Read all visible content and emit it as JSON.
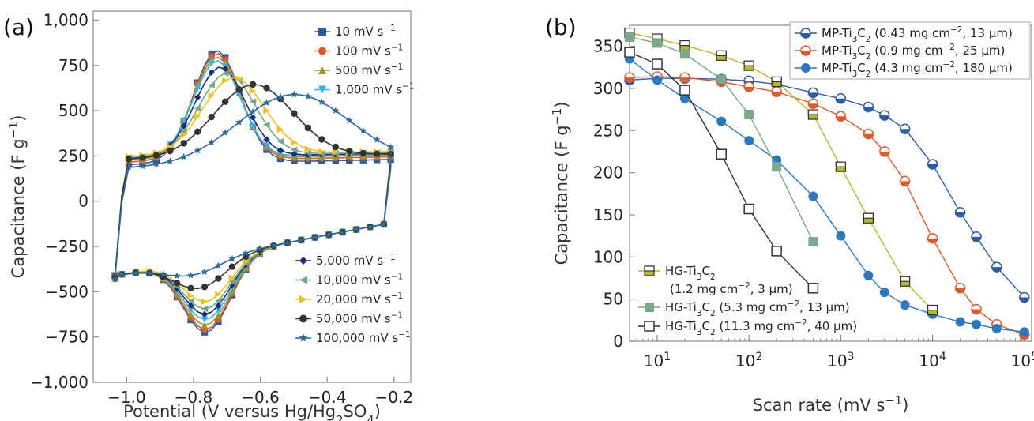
{
  "chart_data": [
    {
      "panel": "(a)",
      "type": "line",
      "title": "",
      "xlabel": "Potential (V versus Hg/Hg",
      "xlabel_sub": "2",
      "xlabel_mid": "SO",
      "xlabel_sub2": "4",
      "xlabel_end": ")",
      "ylabel": "Capacitance (F g",
      "ylabel_sup": "−1",
      "ylabel_end": ")",
      "xlim": [
        -1.1,
        -0.15
      ],
      "ylim": [
        -1000,
        1050
      ],
      "xticks": [
        -1.0,
        -0.8,
        -0.6,
        -0.4,
        -0.2
      ],
      "xtick_labels": [
        "−1.0",
        "−0.8",
        "−0.6",
        "−0.4",
        "−0.2"
      ],
      "yticks": [
        -1000,
        -750,
        -500,
        -250,
        0,
        250,
        500,
        750,
        1000
      ],
      "ytick_labels": [
        "−1,000",
        "−750",
        "−500",
        "−250",
        "0",
        "250",
        "500",
        "750",
        "1,000"
      ],
      "legend_top": "top-right",
      "legend_bottom": "bottom-right",
      "series": [
        {
          "name": "10 mV s",
          "color": "#2a5caa",
          "marker": "square",
          "peak_v": -0.73,
          "peak_c": 850,
          "trough_v": -0.76,
          "trough_c": -830,
          "start_c": 200,
          "low_c": -410
        },
        {
          "name": "100 mV s",
          "color": "#e0592a",
          "marker": "circle",
          "peak_v": -0.73,
          "peak_c": 835,
          "trough_v": -0.76,
          "trough_c": -815,
          "start_c": 215,
          "low_c": -415
        },
        {
          "name": "500 mV s",
          "color": "#9a9a2a",
          "marker": "triangle-up",
          "peak_v": -0.73,
          "peak_c": 815,
          "trough_v": -0.76,
          "trough_c": -790,
          "start_c": 225,
          "low_c": -420
        },
        {
          "name": "1,000 mV s",
          "color": "#33b5e5",
          "marker": "triangle-down",
          "peak_v": -0.73,
          "peak_c": 795,
          "trough_v": -0.76,
          "trough_c": -760,
          "start_c": 230,
          "low_c": -425
        },
        {
          "name": "5,000 mV s",
          "color": "#1c2d80",
          "marker": "diamond",
          "peak_v": -0.72,
          "peak_c": 760,
          "trough_v": -0.76,
          "trough_c": -730,
          "start_c": 235,
          "low_c": -430
        },
        {
          "name": "10,000 mV s",
          "color": "#6fa88a",
          "marker": "triangle-left",
          "peak_v": -0.7,
          "peak_c": 725,
          "trough_v": -0.76,
          "trough_c": -700,
          "start_c": 240,
          "low_c": -430
        },
        {
          "name": "20,000 mV s",
          "color": "#f2c01e",
          "marker": "triangle-right",
          "peak_v": -0.68,
          "peak_c": 700,
          "trough_v": -0.76,
          "trough_c": -660,
          "start_c": 245,
          "low_c": -430
        },
        {
          "name": "50,000 mV s",
          "color": "#333333",
          "marker": "circle",
          "peak_v": -0.62,
          "peak_c": 660,
          "trough_v": -0.78,
          "trough_c": -580,
          "start_c": 230,
          "low_c": -420
        },
        {
          "name": "100,000 mV s",
          "color": "#2a6aa0",
          "marker": "star",
          "peak_v": -0.5,
          "peak_c": 600,
          "trough_v": -0.8,
          "trough_c": -500,
          "start_c": 180,
          "low_c": -430
        }
      ],
      "legend_sup": "−1"
    },
    {
      "panel": "(b)",
      "type": "line",
      "title": "",
      "xlabel": "Scan rate (mV s",
      "xlabel_sup": "−1",
      "xlabel_end": ")",
      "ylabel": "Capacitance (F g",
      "ylabel_sup": "−1",
      "ylabel_end": ")",
      "xscale": "log",
      "xlim": [
        5,
        120000
      ],
      "ylim": [
        0,
        375
      ],
      "xticks": [
        10,
        100,
        1000,
        10000,
        100000
      ],
      "xtick_base": "10",
      "xtick_exps": [
        "1",
        "2",
        "3",
        "4",
        "5"
      ],
      "yticks": [
        0,
        50,
        100,
        150,
        200,
        250,
        300,
        350
      ],
      "ytick_labels": [
        "0",
        "50",
        "100",
        "150",
        "200",
        "250",
        "300",
        "350"
      ],
      "series": [
        {
          "name": "MP-Ti3C2 (0.43 mg cm−2, 13 µm)",
          "leg_main": "MP-Ti",
          "leg_sub1": "3",
          "leg_c": "C",
          "leg_sub2": "2",
          "leg_rest1": " (0.43 mg cm",
          "leg_sup": "−2",
          "leg_rest2": ", 13 µm)",
          "color": "#2a5caa",
          "marker": "half-circle",
          "x": [
            5,
            10,
            20,
            50,
            100,
            200,
            500,
            1000,
            2000,
            3000,
            5000,
            10000,
            20000,
            30000,
            50000,
            100000
          ],
          "y": [
            310,
            312,
            312,
            311,
            309,
            305,
            295,
            288,
            278,
            268,
            252,
            210,
            153,
            124,
            88,
            52
          ]
        },
        {
          "name": "MP-Ti3C2 (0.9 mg cm−2, 25 µm)",
          "leg_main": "MP-Ti",
          "leg_sub1": "3",
          "leg_c": "C",
          "leg_sub2": "2",
          "leg_rest1": " (0.9 mg cm",
          "leg_sup": "−2",
          "leg_rest2": ", 25 µm)",
          "color": "#e0592a",
          "marker": "half-circle",
          "x": [
            5,
            10,
            20,
            50,
            100,
            200,
            500,
            1000,
            2000,
            3000,
            5000,
            10000,
            20000,
            30000,
            50000,
            100000
          ],
          "y": [
            313,
            314,
            313,
            308,
            302,
            296,
            282,
            267,
            246,
            225,
            190,
            122,
            63,
            38,
            20,
            8
          ]
        },
        {
          "name": "MP-Ti3C2 (4.3 mg cm−2, 180 µm)",
          "leg_main": "MP-Ti",
          "leg_sub1": "3",
          "leg_c": "C",
          "leg_sub2": "2",
          "leg_rest1": " (4.3 mg cm",
          "leg_sup": "−2",
          "leg_rest2": ", 180 µm)",
          "color": "#2a78bf",
          "marker": "circle",
          "x": [
            5,
            10,
            20,
            50,
            100,
            200,
            500,
            1000,
            2000,
            3000,
            5000,
            10000,
            20000,
            30000,
            50000,
            100000
          ],
          "y": [
            335,
            310,
            288,
            261,
            238,
            215,
            172,
            125,
            78,
            58,
            43,
            32,
            23,
            20,
            15,
            11
          ]
        },
        {
          "name": "HG-Ti3C2 (1.2 mg cm−2, 3 µm)",
          "leg_main": "HG-Ti",
          "leg_sub1": "3",
          "leg_c": "C",
          "leg_sub2": "2",
          "leg_rest1": "",
          "leg_line2a": "(1.2 mg cm",
          "leg_sup": "−2",
          "leg_rest2": ", 3 µm)",
          "color": "#b8b82a",
          "marker": "square-half",
          "x": [
            5,
            10,
            20,
            50,
            100,
            200,
            500,
            1000,
            2000,
            5000,
            10000
          ],
          "y": [
            366,
            359,
            351,
            339,
            327,
            308,
            269,
            207,
            146,
            71,
            37
          ]
        },
        {
          "name": "HG-Ti3C2 (5.3 mg cm−2, 13 µm)",
          "leg_main": "HG-Ti",
          "leg_sub1": "3",
          "leg_c": "C",
          "leg_sub2": "2",
          "leg_rest1": " (5.3 mg cm",
          "leg_sup": "−2",
          "leg_rest2": ", 13 µm)",
          "color": "#7aa88a",
          "marker": "square",
          "x": [
            5,
            10,
            20,
            50,
            100,
            200,
            500
          ],
          "y": [
            361,
            354,
            341,
            311,
            269,
            207,
            118
          ]
        },
        {
          "name": "HG-Ti3C2 (11.3 mg cm−2, 40 µm)",
          "leg_main": "HG-Ti",
          "leg_sub1": "3",
          "leg_c": "C",
          "leg_sub2": "2",
          "leg_rest1": " (11.3 mg cm",
          "leg_sup": "−2",
          "leg_rest2": ", 40 µm)",
          "color": "#333333",
          "marker": "square-open",
          "x": [
            5,
            10,
            20,
            50,
            100,
            200,
            500
          ],
          "y": [
            343,
            329,
            298,
            222,
            157,
            107,
            63
          ]
        }
      ],
      "legend_top": "top-right",
      "legend_bottom": "bottom-left"
    }
  ]
}
